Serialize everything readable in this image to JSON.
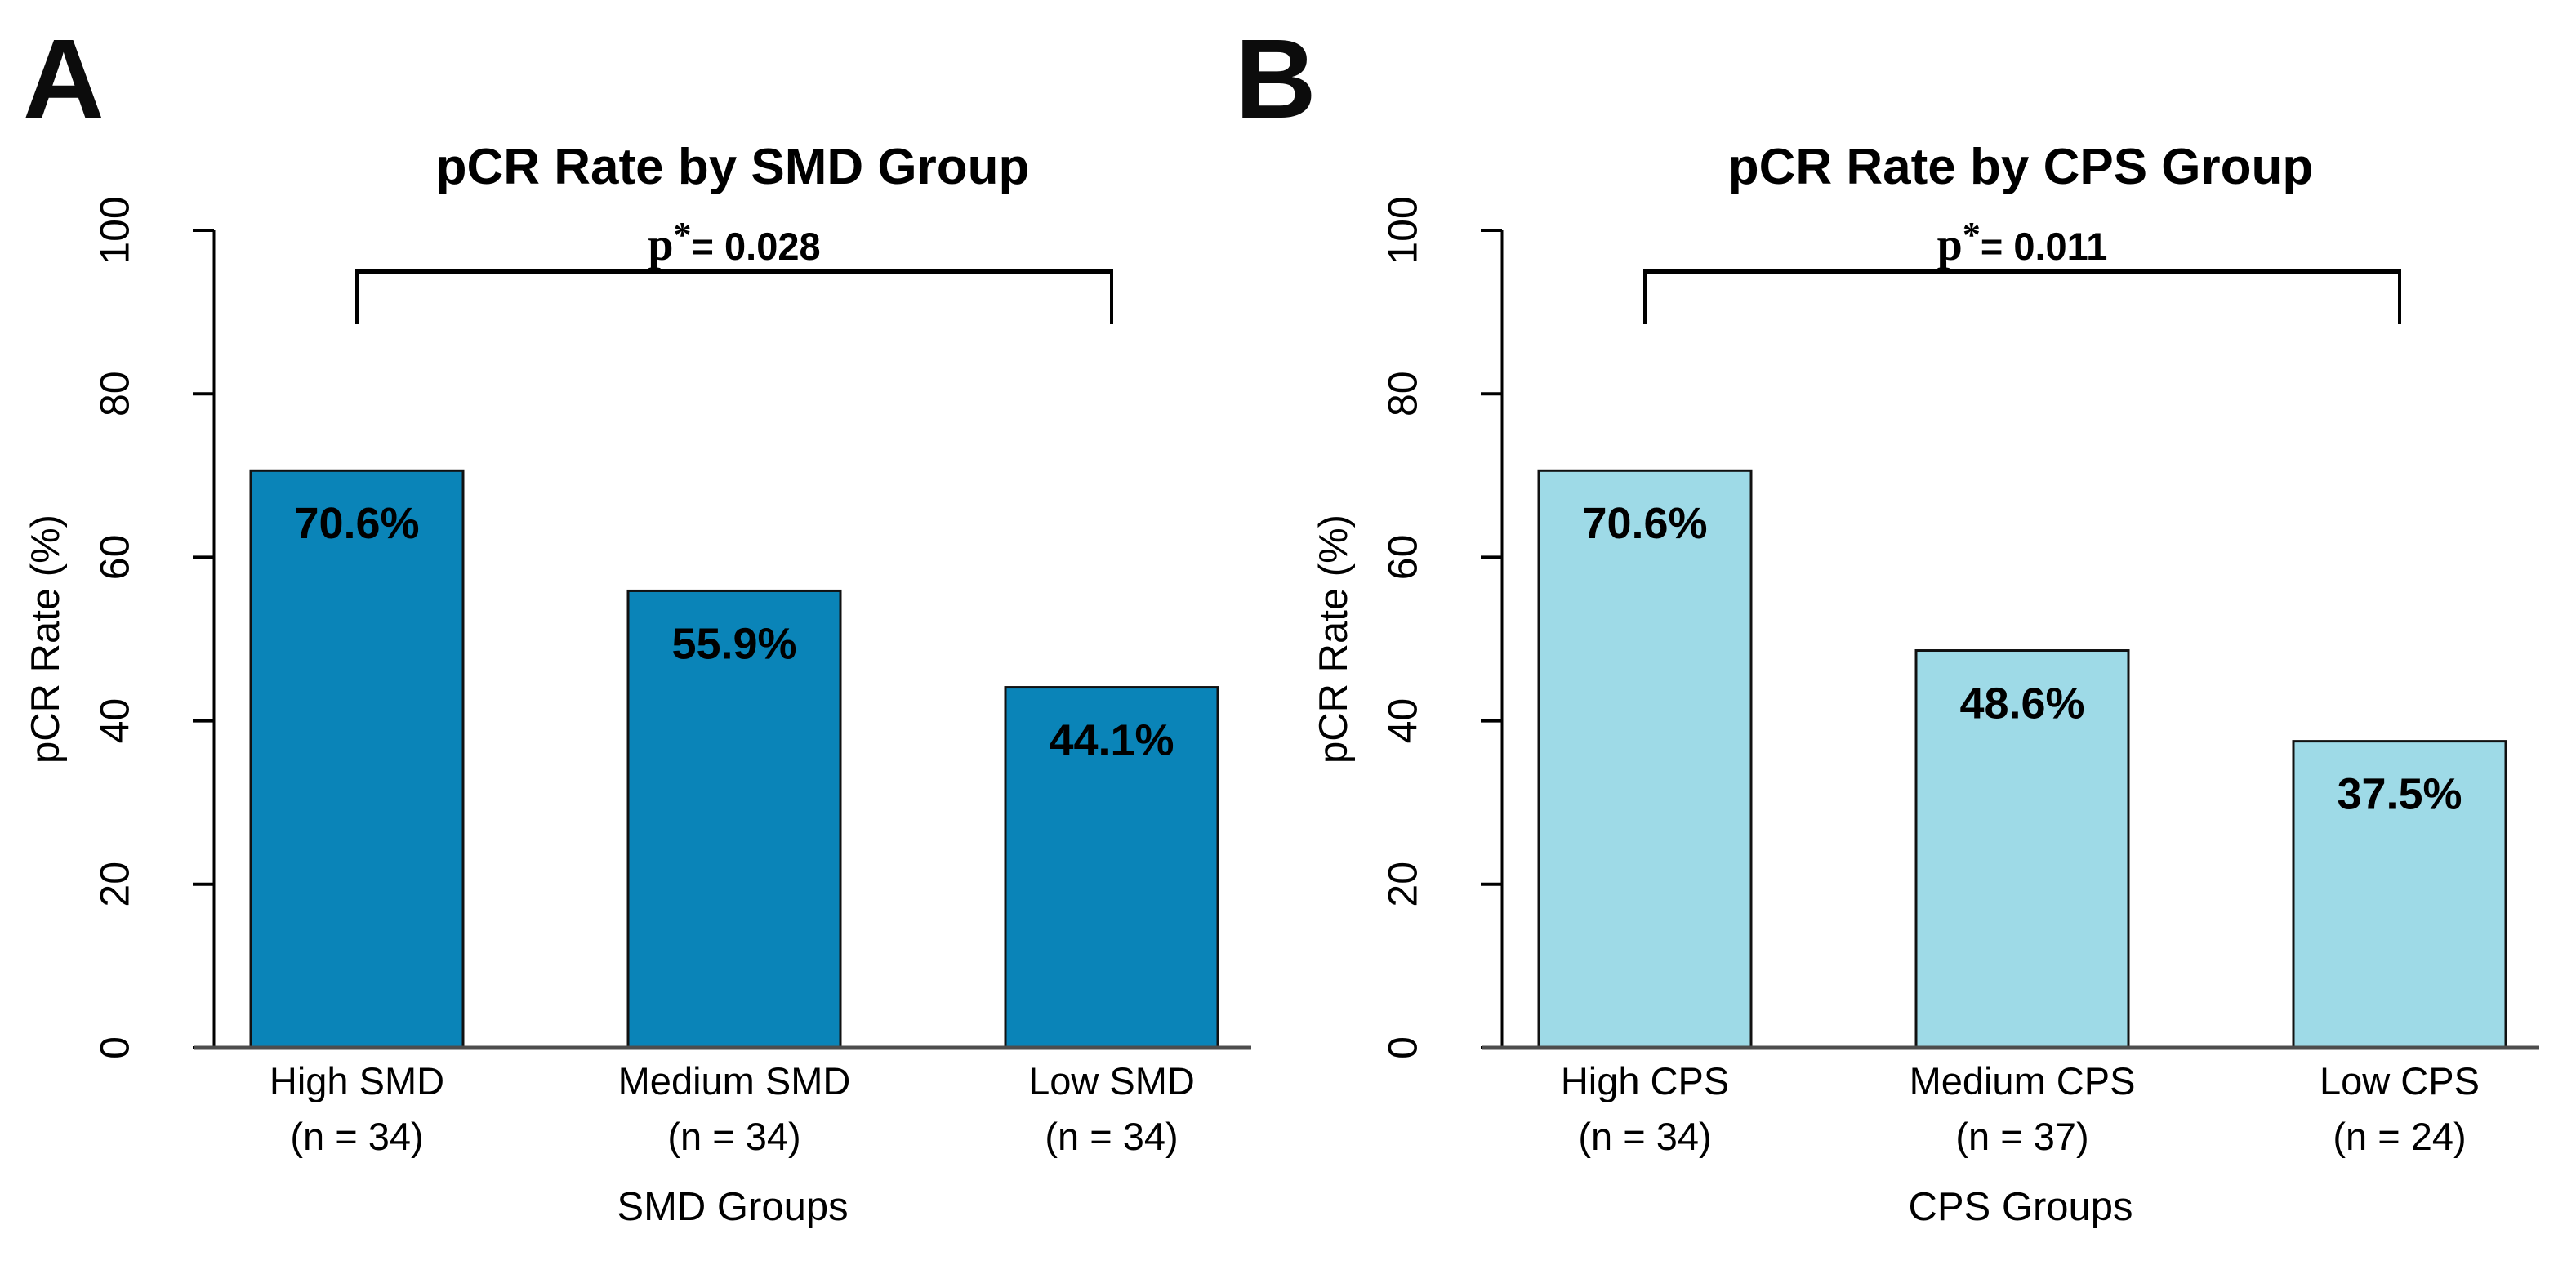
{
  "chart_data": [
    {
      "type": "bar",
      "panel_label": "A",
      "title": "pCR Rate by SMD Group",
      "xlabel": "SMD Groups",
      "ylabel": "pCR Rate (%)",
      "ylim": [
        0,
        100
      ],
      "yticks": [
        0,
        20,
        40,
        60,
        80,
        100
      ],
      "categories": [
        "High SMD",
        "Medium SMD",
        "Low SMD"
      ],
      "count_labels": [
        "(n = 34)",
        "(n = 34)",
        "(n = 34)"
      ],
      "values": [
        70.6,
        55.9,
        44.1
      ],
      "bar_labels": [
        "70.6%",
        "55.9%",
        "44.1%"
      ],
      "bar_color": "#0a84b8",
      "bar_border_color": "#111111",
      "baseline_color": "#4d4d4d",
      "grid": false,
      "legend": "none",
      "significance": {
        "p_prefix": "p",
        "star": "*",
        "value_text": "= 0.028",
        "from_bar": 0,
        "to_bar": 2
      }
    },
    {
      "type": "bar",
      "panel_label": "B",
      "title": "pCR Rate by CPS Group",
      "xlabel": "CPS Groups",
      "ylabel": "pCR Rate (%)",
      "ylim": [
        0,
        100
      ],
      "yticks": [
        0,
        20,
        40,
        60,
        80,
        100
      ],
      "categories": [
        "High CPS",
        "Medium CPS",
        "Low CPS"
      ],
      "count_labels": [
        "(n = 34)",
        "(n = 37)",
        "(n = 24)"
      ],
      "values": [
        70.6,
        48.6,
        37.5
      ],
      "bar_labels": [
        "70.6%",
        "48.6%",
        "37.5%"
      ],
      "bar_color": "#9edae7",
      "bar_border_color": "#111111",
      "baseline_color": "#4d4d4d",
      "grid": false,
      "legend": "none",
      "significance": {
        "p_prefix": "p",
        "star": "*",
        "value_text": "= 0.011",
        "from_bar": 0,
        "to_bar": 2
      }
    }
  ]
}
